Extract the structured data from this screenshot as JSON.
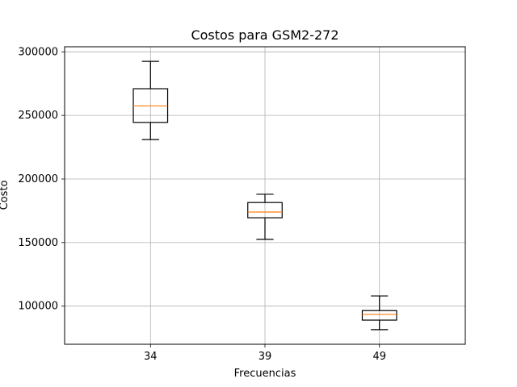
{
  "chart_data": {
    "type": "box",
    "title": "Costos para GSM2-272",
    "xlabel": "Frecuencias",
    "ylabel": "Costo",
    "categories": [
      "34",
      "39",
      "49"
    ],
    "ylim": [
      70000,
      304000
    ],
    "yticks": [
      100000,
      150000,
      200000,
      250000,
      300000
    ],
    "grid": true,
    "boxes": [
      {
        "category": "34",
        "whisker_low": 231000,
        "q1": 244500,
        "median": 257500,
        "q3": 271000,
        "whisker_high": 292500
      },
      {
        "category": "39",
        "whisker_low": 152500,
        "q1": 169500,
        "median": 174000,
        "q3": 181500,
        "whisker_high": 188000
      },
      {
        "category": "49",
        "whisker_low": 81500,
        "q1": 89000,
        "median": 93500,
        "q3": 96500,
        "whisker_high": 108000
      }
    ],
    "colors": {
      "box": "#000000",
      "median": "#ff7f0e",
      "grid": "#b0b0b0"
    }
  }
}
